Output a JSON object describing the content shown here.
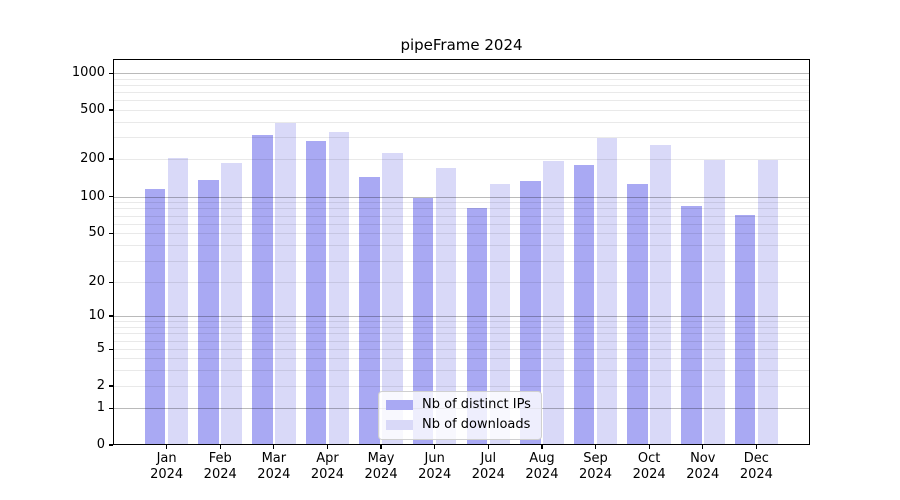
{
  "title": "pipeFrame 2024",
  "legend": {
    "items": [
      {
        "label": "Nb of distinct IPs",
        "color": "#a9a9f3"
      },
      {
        "label": "Nb of downloads",
        "color": "#d9d9f8"
      }
    ]
  },
  "chart_data": {
    "type": "bar",
    "title": "pipeFrame 2024",
    "categories": [
      "Jan 2024",
      "Feb 2024",
      "Mar 2024",
      "Apr 2024",
      "May 2024",
      "Jun 2024",
      "Jul 2024",
      "Aug 2024",
      "Sep 2024",
      "Oct 2024",
      "Nov 2024",
      "Dec 2024"
    ],
    "series": [
      {
        "name": "Nb of distinct IPs",
        "color": "#a9a9f3",
        "values": [
          115,
          137,
          315,
          280,
          144,
          97,
          80,
          133,
          178,
          127,
          84,
          71
        ]
      },
      {
        "name": "Nb of downloads",
        "color": "#d9d9f8",
        "values": [
          205,
          185,
          395,
          330,
          225,
          170,
          127,
          193,
          295,
          260,
          197,
          197
        ]
      }
    ],
    "xlabel": "",
    "ylabel": "",
    "yscale": "log-like (compressed near zero, 0 shown at axis bottom)",
    "ytick_values": [
      1000,
      500,
      200,
      100,
      50,
      20,
      10,
      5,
      2,
      1,
      0
    ],
    "ytick_labels": [
      "1000",
      "500",
      "200",
      "100",
      "50",
      "20",
      "10",
      "5",
      "2",
      "1",
      "0"
    ],
    "ylim": [
      0,
      1300
    ],
    "grid": "both (major darker at powers of 10, faint minor log lines)",
    "legend_position": "lower center"
  }
}
